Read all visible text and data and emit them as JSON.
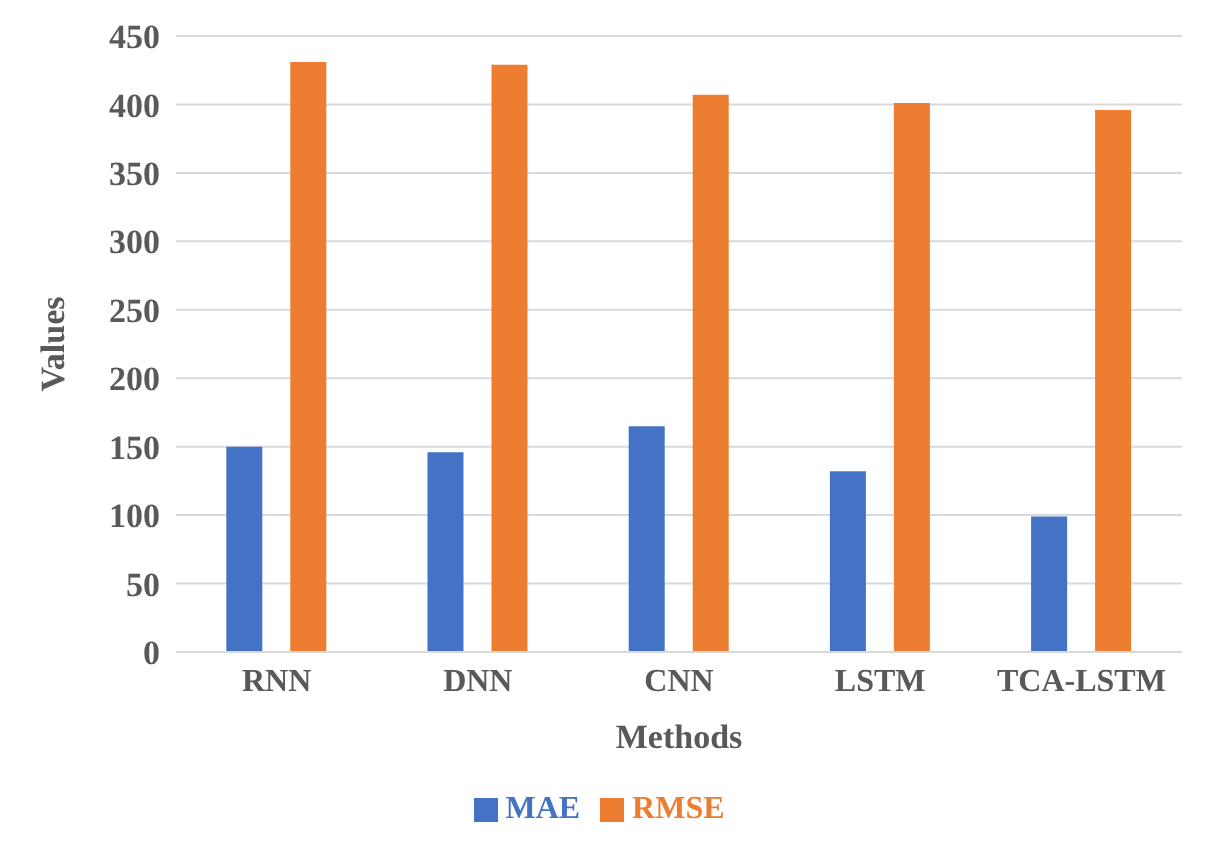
{
  "chart_data": {
    "type": "bar",
    "xlabel": "Methods",
    "ylabel": "Values",
    "categories": [
      "RNN",
      "DNN",
      "CNN",
      "LSTM",
      "TCA-LSTM"
    ],
    "series": [
      {
        "name": "MAE",
        "color": "#4472c4",
        "values": [
          150,
          146,
          165,
          132,
          99
        ]
      },
      {
        "name": "RMSE",
        "color": "#ed7d31",
        "values": [
          431,
          429,
          407,
          401,
          396
        ]
      }
    ],
    "ylim": [
      0,
      450
    ],
    "yticks": [
      0,
      50,
      100,
      150,
      200,
      250,
      300,
      350,
      400,
      450
    ],
    "grid": "y",
    "legend": "bottom"
  }
}
